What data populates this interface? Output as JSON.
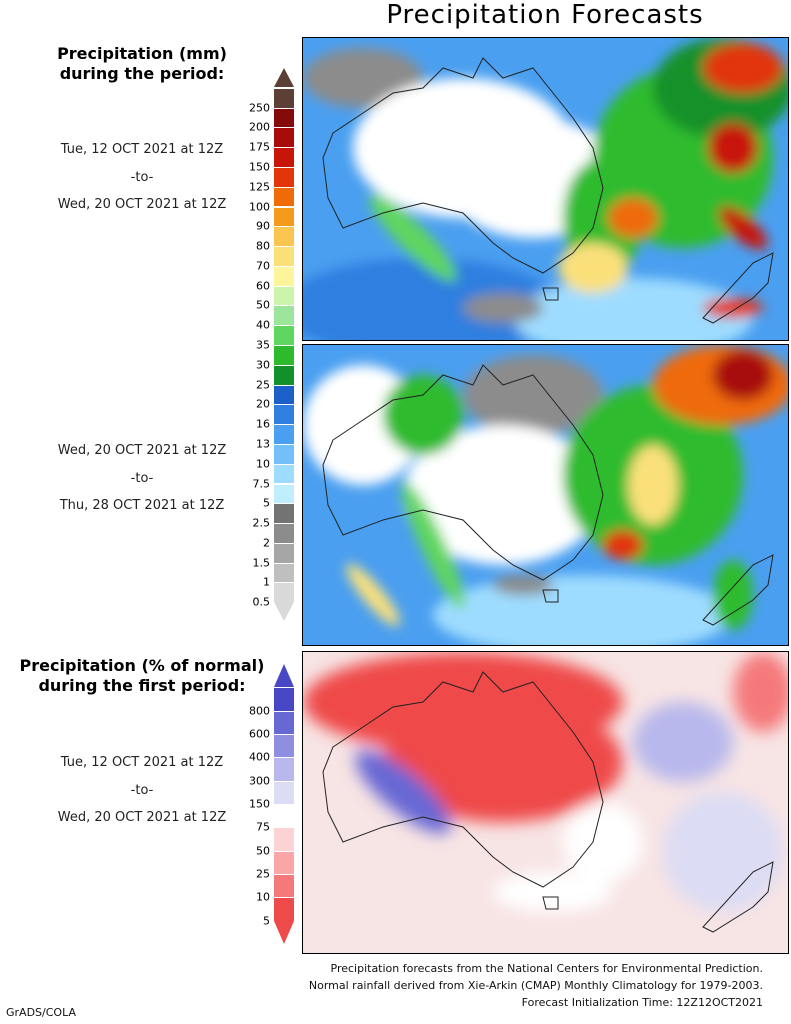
{
  "title": "Precipitation Forecasts",
  "legend_top": {
    "heading_line1": "Precipitation (mm)",
    "heading_line2": "during the period:",
    "levels": [
      "0.5",
      "1",
      "1.5",
      "2",
      "2.5",
      "5",
      "7.5",
      "10",
      "13",
      "16",
      "20",
      "25",
      "30",
      "35",
      "40",
      "50",
      "60",
      "70",
      "80",
      "90",
      "100",
      "125",
      "150",
      "175",
      "200",
      "250"
    ],
    "colors": [
      "#d9d9d9",
      "#bfbfbf",
      "#a6a6a6",
      "#8c8c8c",
      "#737373",
      "#bfefff",
      "#9edcff",
      "#72c0f7",
      "#4a9ff0",
      "#2f7fe0",
      "#1a60c8",
      "#12912a",
      "#2dbb2d",
      "#5fd65f",
      "#9be69b",
      "#cdf4ad",
      "#fdf59b",
      "#fbe07a",
      "#fbc64f",
      "#f59b1c",
      "#ee6b08",
      "#e2360a",
      "#c8150a",
      "#a80c0a",
      "#850b0a",
      "#5c4036"
    ]
  },
  "legend_bottom": {
    "heading_line1": "Precipitation (% of normal)",
    "heading_line2": "during the first period:",
    "levels": [
      "5",
      "10",
      "25",
      "50",
      "75",
      "150",
      "300",
      "400",
      "600",
      "800"
    ],
    "colors": [
      "#ef4a4a",
      "#f5797b",
      "#f9a6a6",
      "#fcd2d2",
      "#ffffff",
      "#dcdcf4",
      "#b8b8ec",
      "#8f8fe0",
      "#6868d4",
      "#4848c6"
    ]
  },
  "periods": [
    {
      "start": "Tue, 12 OCT 2021 at 12Z",
      "to": "-to-",
      "end": "Wed, 20 OCT 2021 at 12Z"
    },
    {
      "start": "Wed, 20 OCT 2021 at 12Z",
      "to": "-to-",
      "end": "Thu, 28 OCT 2021 at 12Z"
    },
    {
      "start": "Tue, 12 OCT 2021 at 12Z",
      "to": "-to-",
      "end": "Wed, 20 OCT 2021 at 12Z"
    }
  ],
  "footer": {
    "line1": "Precipitation forecasts from the National Centers for Environmental Prediction.",
    "line2": "Normal rainfall derived from Xie-Arkin (CMAP) Monthly Climatology for 1979-2003.",
    "line3": "Forecast Initialization Time: 12Z12OCT2021"
  },
  "credit": "GrADS/COLA"
}
